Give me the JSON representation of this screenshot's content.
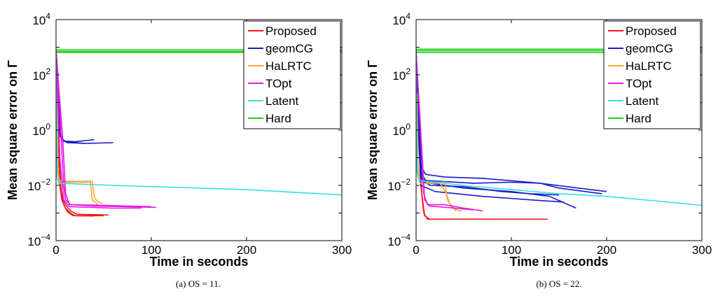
{
  "chart_data": [
    {
      "type": "line",
      "caption": "(a) OS = 11.",
      "xlabel": "Time in seconds",
      "ylabel": "Mean square error on Γ",
      "xlim": [
        0,
        300
      ],
      "ylim": [
        0.0001,
        10000
      ],
      "yscale": "log",
      "xticks": [
        0,
        100,
        200,
        300
      ],
      "yticks": [
        {
          "base": "10",
          "exp": "−4",
          "value": 0.0001
        },
        {
          "base": "10",
          "exp": "−2",
          "value": 0.01
        },
        {
          "base": "10",
          "exp": "0",
          "value": 1
        },
        {
          "base": "10",
          "exp": "2",
          "value": 100
        },
        {
          "base": "10",
          "exp": "4",
          "value": 10000
        }
      ],
      "grid": false,
      "legend_position": "top-right",
      "series": [
        {
          "name": "Proposed",
          "color": "#ee1c1c",
          "runs": [
            [
              [
                0,
                700
              ],
              [
                2,
                1
              ],
              [
                4,
                0.01
              ],
              [
                6,
                0.003
              ],
              [
                10,
                0.0015
              ],
              [
                15,
                0.001
              ],
              [
                20,
                0.0008
              ],
              [
                50,
                0.0008
              ]
            ],
            [
              [
                0,
                700
              ],
              [
                2,
                1.5
              ],
              [
                4,
                0.02
              ],
              [
                6,
                0.004
              ],
              [
                10,
                0.002
              ],
              [
                15,
                0.0012
              ],
              [
                22,
                0.0009
              ],
              [
                55,
                0.00085
              ]
            ],
            [
              [
                0,
                600
              ],
              [
                3,
                1
              ],
              [
                5,
                0.008
              ],
              [
                8,
                0.002
              ],
              [
                12,
                0.0011
              ],
              [
                18,
                0.0008
              ],
              [
                40,
                0.00078
              ]
            ]
          ]
        },
        {
          "name": "geomCG",
          "color": "#1a1acc",
          "runs": [
            [
              [
                0,
                700
              ],
              [
                2,
                100
              ],
              [
                3,
                1
              ],
              [
                6,
                0.45
              ],
              [
                12,
                0.35
              ],
              [
                30,
                0.33
              ]
            ],
            [
              [
                0,
                600
              ],
              [
                2,
                50
              ],
              [
                4,
                0.8
              ],
              [
                8,
                0.4
              ],
              [
                20,
                0.38
              ],
              [
                40,
                0.45
              ]
            ],
            [
              [
                0,
                700
              ],
              [
                2,
                80
              ],
              [
                4,
                0.6
              ],
              [
                10,
                0.38
              ],
              [
                30,
                0.33
              ],
              [
                60,
                0.35
              ]
            ]
          ]
        },
        {
          "name": "HaLRTC",
          "color": "#f4a83a",
          "runs": [
            [
              [
                0,
                5
              ],
              [
                1,
                30
              ],
              [
                2,
                0.05
              ],
              [
                3,
                0.015
              ],
              [
                10,
                0.014
              ],
              [
                38,
                0.014
              ],
              [
                40,
                0.004
              ],
              [
                42,
                0.003
              ],
              [
                45,
                0.0025
              ],
              [
                48,
                0.0022
              ]
            ],
            [
              [
                0,
                3
              ],
              [
                1,
                10
              ],
              [
                2,
                0.03
              ],
              [
                4,
                0.013
              ],
              [
                20,
                0.013
              ],
              [
                36,
                0.013
              ],
              [
                38,
                0.003
              ],
              [
                44,
                0.002
              ]
            ]
          ]
        },
        {
          "name": "TOpt",
          "color": "#e617e6",
          "runs": [
            [
              [
                0,
                700
              ],
              [
                5,
                1
              ],
              [
                8,
                0.01
              ],
              [
                10,
                0.003
              ],
              [
                15,
                0.002
              ],
              [
                50,
                0.0019
              ],
              [
                100,
                0.0017
              ]
            ],
            [
              [
                0,
                700
              ],
              [
                7,
                0.5
              ],
              [
                10,
                0.005
              ],
              [
                14,
                0.002
              ],
              [
                40,
                0.0018
              ],
              [
                105,
                0.0016
              ]
            ],
            [
              [
                0,
                600
              ],
              [
                4,
                0.1
              ],
              [
                8,
                0.003
              ],
              [
                14,
                0.0017
              ],
              [
                60,
                0.0015
              ],
              [
                90,
                0.0015
              ]
            ]
          ]
        },
        {
          "name": "Latent",
          "color": "#33e0e0",
          "runs": [
            [
              [
                0,
                600
              ],
              [
                1,
                0.02
              ],
              [
                3,
                0.012
              ],
              [
                60,
                0.01
              ],
              [
                150,
                0.008
              ],
              [
                200,
                0.007
              ],
              [
                300,
                0.0045
              ]
            ]
          ]
        },
        {
          "name": "Hard",
          "color": "#1fd01f",
          "runs": [
            [
              [
                0,
                800
              ],
              [
                300,
                800
              ]
            ],
            [
              [
                0,
                700
              ],
              [
                300,
                700
              ]
            ],
            [
              [
                0,
                650
              ],
              [
                300,
                650
              ]
            ]
          ]
        }
      ]
    },
    {
      "type": "line",
      "caption": "(b) OS = 22.",
      "xlabel": "Time in seconds",
      "ylabel": "Mean square error on Γ",
      "xlim": [
        0,
        300
      ],
      "ylim": [
        0.0001,
        10000
      ],
      "yscale": "log",
      "xticks": [
        0,
        100,
        200,
        300
      ],
      "yticks": [
        {
          "base": "10",
          "exp": "−4",
          "value": 0.0001
        },
        {
          "base": "10",
          "exp": "−2",
          "value": 0.01
        },
        {
          "base": "10",
          "exp": "0",
          "value": 1
        },
        {
          "base": "10",
          "exp": "2",
          "value": 100
        },
        {
          "base": "10",
          "exp": "4",
          "value": 10000
        }
      ],
      "grid": false,
      "legend_position": "top-right",
      "series": [
        {
          "name": "Proposed",
          "color": "#ee1c1c",
          "runs": [
            [
              [
                0,
                700
              ],
              [
                3,
                1
              ],
              [
                5,
                0.01
              ],
              [
                8,
                0.001
              ],
              [
                12,
                0.0006
              ],
              [
                30,
                0.0006
              ],
              [
                85,
                0.0006
              ]
            ],
            [
              [
                0,
                700
              ],
              [
                3,
                0.8
              ],
              [
                6,
                0.005
              ],
              [
                9,
                0.0008
              ],
              [
                14,
                0.0006
              ],
              [
                60,
                0.0006
              ],
              [
                138,
                0.0006
              ]
            ]
          ]
        },
        {
          "name": "geomCG",
          "color": "#1a1acc",
          "runs": [
            [
              [
                0,
                700
              ],
              [
                3,
                5
              ],
              [
                5,
                0.05
              ],
              [
                10,
                0.025
              ],
              [
                30,
                0.02
              ],
              [
                70,
                0.018
              ],
              [
                130,
                0.012
              ],
              [
                170,
                0.008
              ],
              [
                200,
                0.006
              ]
            ],
            [
              [
                0,
                700
              ],
              [
                3,
                2
              ],
              [
                5,
                0.03
              ],
              [
                10,
                0.015
              ],
              [
                60,
                0.012
              ],
              [
                100,
                0.013
              ],
              [
                130,
                0.012
              ],
              [
                150,
                0.008
              ],
              [
                195,
                0.005
              ]
            ],
            [
              [
                0,
                600
              ],
              [
                3,
                1
              ],
              [
                5,
                0.02
              ],
              [
                15,
                0.012
              ],
              [
                50,
                0.008
              ],
              [
                100,
                0.006
              ],
              [
                140,
                0.004
              ],
              [
                168,
                0.0015
              ]
            ],
            [
              [
                0,
                600
              ],
              [
                4,
                0.5
              ],
              [
                6,
                0.015
              ],
              [
                15,
                0.01
              ],
              [
                50,
                0.009
              ],
              [
                90,
                0.006
              ],
              [
                120,
                0.005
              ],
              [
                150,
                0.0045
              ]
            ],
            [
              [
                0,
                500
              ],
              [
                3,
                0.3
              ],
              [
                5,
                0.01
              ],
              [
                20,
                0.006
              ],
              [
                70,
                0.004
              ],
              [
                120,
                0.003
              ],
              [
                155,
                0.0025
              ]
            ]
          ]
        },
        {
          "name": "HaLRTC",
          "color": "#f4a83a",
          "runs": [
            [
              [
                0,
                5
              ],
              [
                1,
                20
              ],
              [
                2,
                0.05
              ],
              [
                4,
                0.015
              ],
              [
                15,
                0.013
              ],
              [
                30,
                0.013
              ],
              [
                33,
                0.003
              ],
              [
                36,
                0.002
              ],
              [
                40,
                0.0015
              ],
              [
                45,
                0.0012
              ],
              [
                48,
                0.0012
              ]
            ],
            [
              [
                0,
                3
              ],
              [
                1,
                8
              ],
              [
                2,
                0.02
              ],
              [
                4,
                0.012
              ],
              [
                25,
                0.012
              ],
              [
                32,
                0.005
              ],
              [
                36,
                0.0018
              ],
              [
                42,
                0.0012
              ]
            ]
          ]
        },
        {
          "name": "TOpt",
          "color": "#e617e6",
          "runs": [
            [
              [
                0,
                700
              ],
              [
                5,
                0.5
              ],
              [
                8,
                0.005
              ],
              [
                12,
                0.002
              ],
              [
                30,
                0.002
              ],
              [
                50,
                0.0015
              ],
              [
                70,
                0.0012
              ]
            ],
            [
              [
                0,
                700
              ],
              [
                6,
                0.2
              ],
              [
                9,
                0.003
              ],
              [
                14,
                0.0018
              ],
              [
                40,
                0.0015
              ],
              [
                60,
                0.0013
              ]
            ]
          ]
        },
        {
          "name": "Latent",
          "color": "#33e0e0",
          "runs": [
            [
              [
                0,
                600
              ],
              [
                1,
                0.03
              ],
              [
                3,
                0.015
              ],
              [
                50,
                0.01
              ],
              [
                100,
                0.007
              ],
              [
                150,
                0.005
              ],
              [
                200,
                0.004
              ],
              [
                300,
                0.0019
              ]
            ]
          ]
        },
        {
          "name": "Hard",
          "color": "#1fd01f",
          "runs": [
            [
              [
                0,
                850
              ],
              [
                300,
                850
              ]
            ],
            [
              [
                0,
                750
              ],
              [
                300,
                750
              ]
            ],
            [
              [
                0,
                650
              ],
              [
                300,
                650
              ]
            ]
          ]
        }
      ]
    }
  ]
}
